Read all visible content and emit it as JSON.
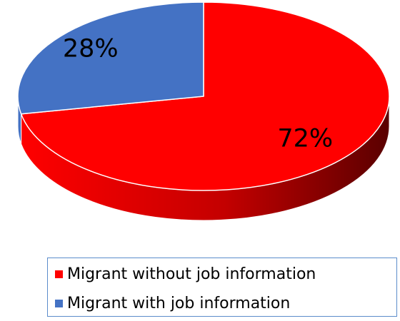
{
  "chart_data": {
    "type": "pie",
    "categories": [
      "Migrant without job information",
      "Migrant with job information"
    ],
    "values": [
      72,
      28
    ],
    "labels": [
      "72%",
      "28%"
    ],
    "colors": [
      "#ff0000",
      "#4472c4"
    ],
    "style": "3d",
    "legend_position": "bottom"
  }
}
